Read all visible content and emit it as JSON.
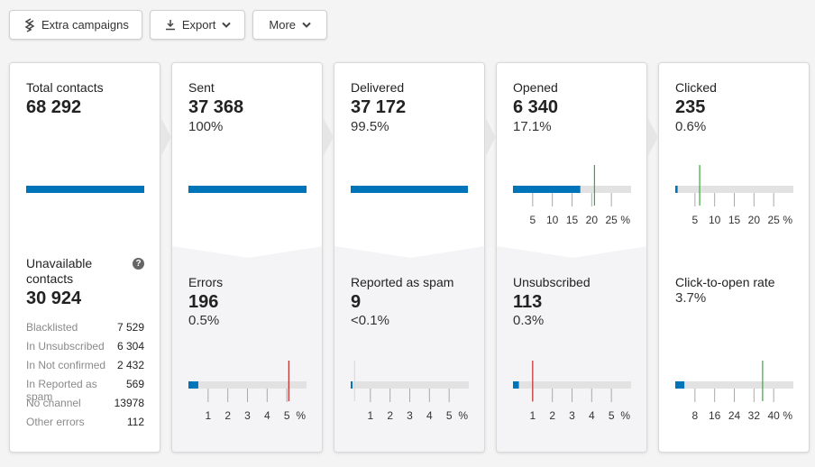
{
  "toolbar": {
    "extra_campaigns": "Extra campaigns",
    "export": "Export",
    "more": "More"
  },
  "colors": {
    "bar": "#0074b8",
    "track": "#e2e2e2",
    "good_marker": "#3aa83a",
    "bad_marker": "#c22a2a"
  },
  "total": {
    "label": "Total contacts",
    "value": "68 292",
    "unavailable_label": "Unavailable contacts",
    "unavailable_value": "30 924",
    "rows": [
      {
        "label": "Blacklisted",
        "value": "7 529"
      },
      {
        "label": "In Unsubscribed",
        "value": "6 304"
      },
      {
        "label": "In Not confirmed",
        "value": "2 432"
      },
      {
        "label": "In Reported as spam",
        "value": "569"
      },
      {
        "label": "No channel",
        "value": "13978"
      },
      {
        "label": "Other errors",
        "value": "112"
      }
    ]
  },
  "sent": {
    "label": "Sent",
    "value": "37 368",
    "pct": "100%"
  },
  "delivered": {
    "label": "Delivered",
    "value": "37 172",
    "pct": "99.5%"
  },
  "opened": {
    "label": "Opened",
    "value": "6 340",
    "pct": "17.1%",
    "gauge": {
      "max": 30,
      "fill": 17.1,
      "marker": 20.7,
      "marker_color": "good",
      "ticks": [
        "5",
        "10",
        "15",
        "20",
        "25"
      ],
      "unit": "%"
    }
  },
  "clicked": {
    "label": "Clicked",
    "value": "235",
    "pct": "0.6%",
    "gauge": {
      "max": 30,
      "fill": 0.6,
      "marker": 6.2,
      "marker_color": "good",
      "ticks": [
        "5",
        "10",
        "15",
        "20",
        "25"
      ],
      "unit": "%"
    }
  },
  "errors": {
    "label": "Errors",
    "value": "196",
    "pct": "0.5%",
    "gauge": {
      "max": 6,
      "fill": 0.5,
      "marker": 5.1,
      "marker_color": "bad",
      "ticks": [
        "1",
        "2",
        "3",
        "4",
        "5"
      ],
      "unit": "%"
    }
  },
  "spam": {
    "label": "Reported as spam",
    "value": "9",
    "pct": "<0.1%",
    "gauge": {
      "max": 6,
      "fill": 0.05,
      "marker": 0.2,
      "marker_color": "neutral",
      "ticks": [
        "1",
        "2",
        "3",
        "4",
        "5"
      ],
      "unit": "%"
    }
  },
  "unsubscribed": {
    "label": "Unsubscribed",
    "value": "113",
    "pct": "0.3%",
    "gauge": {
      "max": 6,
      "fill": 0.3,
      "marker": 1.0,
      "marker_color": "bad",
      "ticks": [
        "1",
        "2",
        "3",
        "4",
        "5"
      ],
      "unit": "%"
    }
  },
  "cto": {
    "label": "Click-to-open rate",
    "pct": "3.7%",
    "gauge": {
      "max": 48,
      "fill": 3.7,
      "marker": 35.5,
      "marker_color": "good",
      "ticks": [
        "8",
        "16",
        "24",
        "32",
        "40"
      ],
      "unit": "%"
    }
  }
}
